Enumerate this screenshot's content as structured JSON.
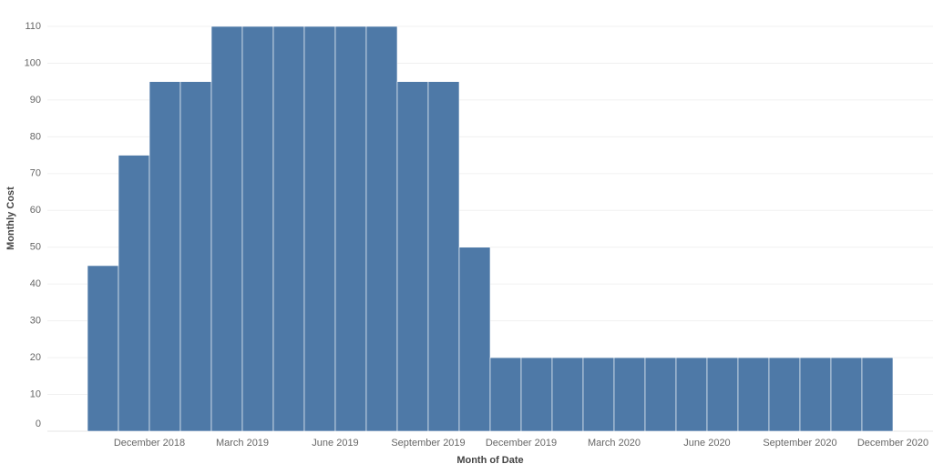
{
  "chart_data": {
    "type": "bar",
    "y_label": "Monthly Cost",
    "x_label": "Month of Date",
    "x_tick_labels": [
      "December 2018",
      "March 2019",
      "June 2019",
      "September 2019",
      "December 2019",
      "March 2020",
      "June 2020",
      "September 2020",
      "December 2020"
    ],
    "values": [
      45,
      75,
      95,
      95,
      110,
      110,
      110,
      110,
      110,
      110,
      95,
      95,
      50,
      20,
      20,
      20,
      20,
      20,
      20,
      20,
      20,
      20,
      20,
      20,
      20,
      20
    ],
    "color": "#4e79a7",
    "ylim": [
      0,
      110
    ],
    "yticks": [
      0,
      10,
      20,
      30,
      40,
      50,
      60,
      70,
      80,
      90,
      100,
      110
    ],
    "grid": true
  }
}
